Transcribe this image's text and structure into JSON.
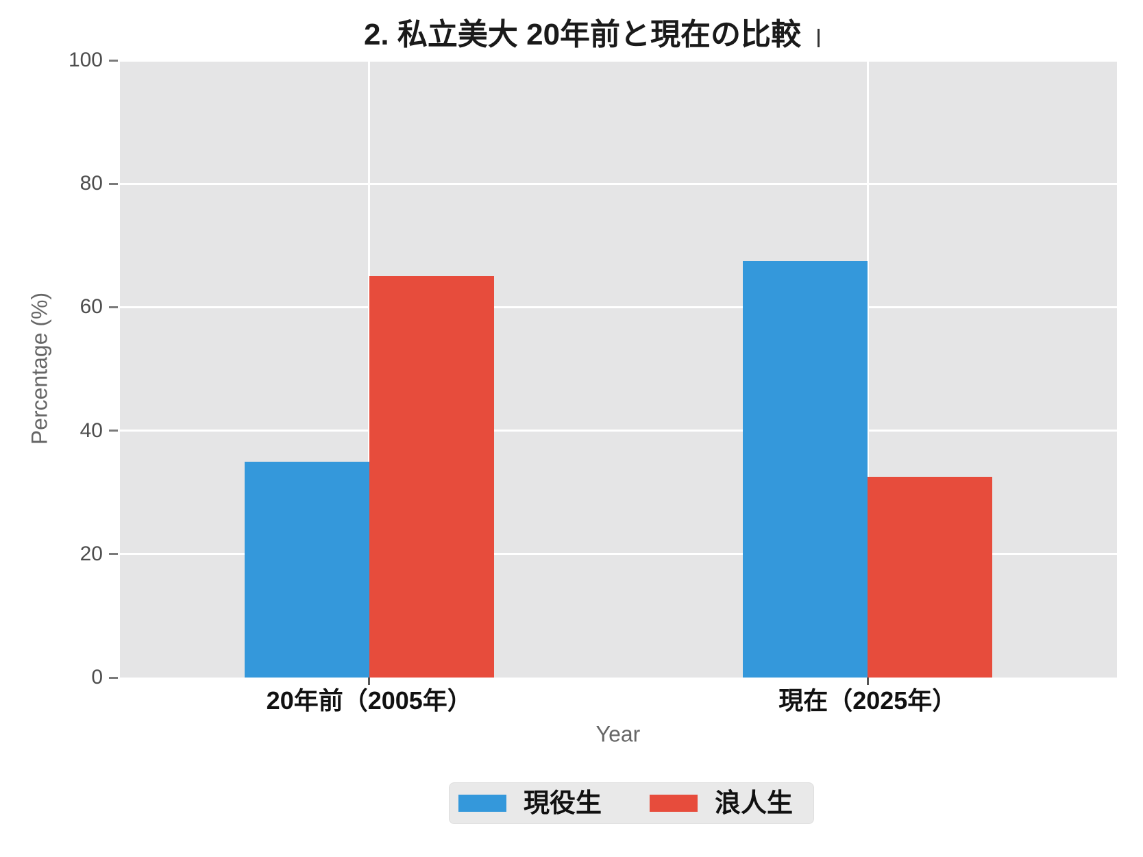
{
  "chart_data": {
    "type": "bar",
    "title": "2. 私立美大 20年前と現在の比較",
    "categories": [
      "20年前（2005年）",
      "現在（2025年）"
    ],
    "series": [
      {
        "name": "現役生",
        "color": "#3498db",
        "values": [
          35,
          67.5
        ]
      },
      {
        "name": "浪人生",
        "color": "#e74c3c",
        "values": [
          65,
          32.5
        ]
      }
    ],
    "xlabel": "Year",
    "ylabel": "Percentage (%)",
    "ylim": [
      0,
      100
    ],
    "yticks": [
      0,
      20,
      40,
      60,
      80,
      100
    ],
    "grid": true,
    "gridline_color": "#ffffff",
    "plot_background": "#e5e5e6",
    "legend_position": "bottom-center"
  }
}
